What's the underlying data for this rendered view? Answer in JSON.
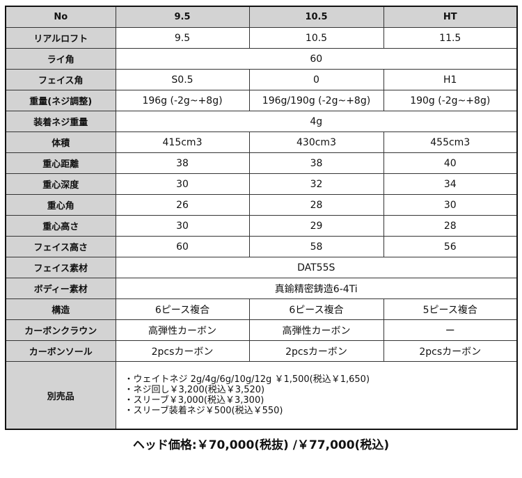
{
  "table": {
    "header": [
      "No",
      "9.5",
      "10.5",
      "HT"
    ],
    "rows": [
      {
        "label": "リアルロフト",
        "values": [
          "9.5",
          "10.5",
          "11.5"
        ]
      },
      {
        "label": "ライ角",
        "values": [
          "60"
        ]
      },
      {
        "label": "フェイス角",
        "values": [
          "S0.5",
          "0",
          "H1"
        ]
      },
      {
        "label": "重量(ネジ調整)",
        "values": [
          "196g (-2g~+8g)",
          "196g/190g (-2g~+8g)",
          "190g (-2g~+8g)"
        ]
      },
      {
        "label": "装着ネジ重量",
        "values": [
          "4g"
        ]
      },
      {
        "label": "体積",
        "values": [
          "415cm3",
          "430cm3",
          "455cm3"
        ]
      },
      {
        "label": "重心距離",
        "values": [
          "38",
          "38",
          "40"
        ]
      },
      {
        "label": "重心深度",
        "values": [
          "30",
          "32",
          "34"
        ]
      },
      {
        "label": "重心角",
        "values": [
          "26",
          "28",
          "30"
        ]
      },
      {
        "label": "重心高さ",
        "values": [
          "30",
          "29",
          "28"
        ]
      },
      {
        "label": "フェイス高さ",
        "values": [
          "60",
          "58",
          "56"
        ]
      },
      {
        "label": "フェイス素材",
        "values": [
          "DAT55S"
        ]
      },
      {
        "label": "ボディー素材",
        "values": [
          "真鍮精密鋳造6-4Ti"
        ]
      },
      {
        "label": "構造",
        "values": [
          "6ピース複合",
          "6ピース複合",
          "5ピース複合"
        ]
      },
      {
        "label": "カーボンクラウン",
        "values": [
          "高弾性カーボン",
          "高弾性カーボン",
          "ー"
        ]
      },
      {
        "label": "カーボンソール",
        "values": [
          "2pcsカーボン",
          "2pcsカーボン",
          "2pcsカーボン"
        ]
      }
    ],
    "accessories": {
      "label": "別売品",
      "items": [
        "・ウェイトネジ 2g/4g/6g/10g/12g ￥1,500(税込￥1,650)",
        "・ネジ回し￥3,200(税込￥3,520)",
        "・スリーブ￥3,000(税込￥3,300)",
        "・スリーブ装着ネジ￥500(税込￥550)"
      ]
    }
  },
  "price": "ヘッド価格:￥70,000(税抜) /￥77,000(税込)"
}
